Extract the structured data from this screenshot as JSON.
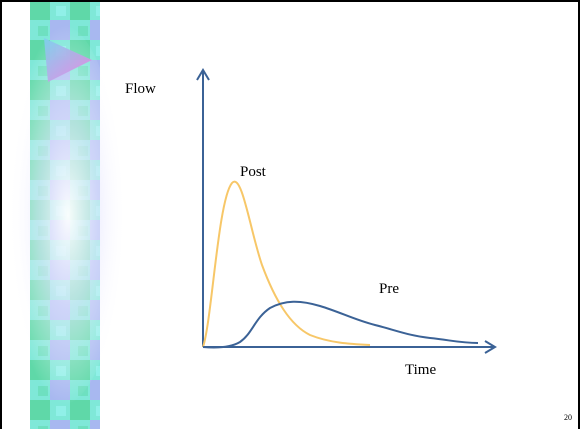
{
  "labels": {
    "y_axis": "Flow",
    "x_axis": "Time",
    "post": "Post",
    "pre": "Pre"
  },
  "page_number": "20"
}
